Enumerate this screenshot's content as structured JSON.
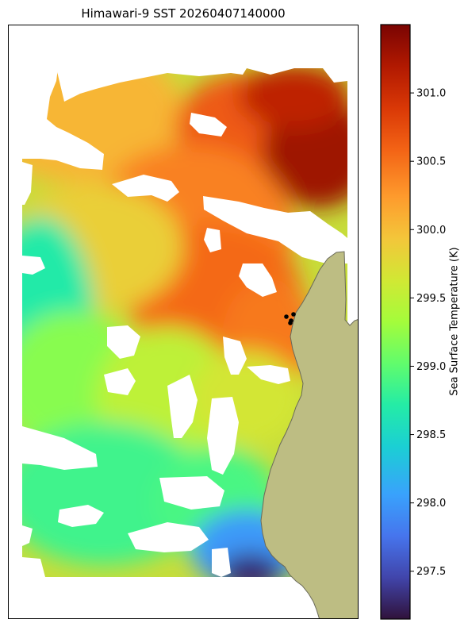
{
  "chart_data": {
    "type": "heatmap",
    "title": "Himawari-9 SST 20260407140000",
    "colorbar": {
      "label": "Sea Surface Temperature (K)",
      "range": [
        297.15,
        301.5
      ],
      "ticks": [
        297.5,
        298.0,
        298.5,
        299.0,
        299.5,
        300.0,
        300.5,
        301.0
      ],
      "tick_labels": [
        "297.5",
        "298.0",
        "298.5",
        "299.0",
        "299.5",
        "300.0",
        "300.5",
        "301.0"
      ],
      "colormap": "turbo"
    },
    "field_summary": {
      "north_east_max": 301.3,
      "central_region": 300.4,
      "western_region": 299.3,
      "south_east_min": 297.3
    },
    "markers": {
      "count": 4,
      "color": "#000000"
    },
    "land_color": "#bdbd83",
    "cloud_mask_color": "#ffffff"
  }
}
